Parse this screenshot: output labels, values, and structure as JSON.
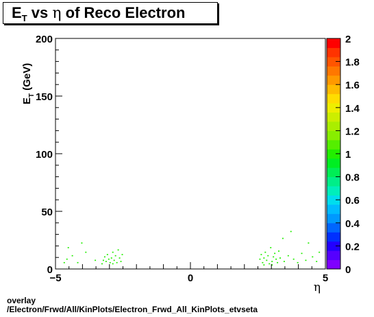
{
  "title": {
    "prefix": "E",
    "subscript": "T",
    "middle": " vs  ",
    "symbol": "η",
    "suffix": " of Reco Electron"
  },
  "footer": {
    "line1": "overlay",
    "line2": "/Electron/Frwd/All/KinPlots/Electron_Frwd_All_KinPlots_etvseta"
  },
  "palette": {
    "zmin": 0,
    "zmax": 2,
    "ticks": [
      "0",
      "0.2",
      "0.4",
      "0.6",
      "0.8",
      "1",
      "1.2",
      "1.4",
      "1.6",
      "1.8",
      "2"
    ],
    "colors": [
      "#7f00ff",
      "#5500ff",
      "#2200ff",
      "#0030ff",
      "#0066ff",
      "#0099ff",
      "#00bbff",
      "#00ddee",
      "#00eebb",
      "#00ee88",
      "#00ee55",
      "#00ee22",
      "#22ee00",
      "#55ee00",
      "#88ee00",
      "#aaee00",
      "#ccee00",
      "#eeee00",
      "#ffdd00",
      "#ffbb00",
      "#ff9900",
      "#ff7700",
      "#ff5500",
      "#ff3300",
      "#ff0000"
    ]
  },
  "chart_data": {
    "type": "heatmap",
    "xlabel": "η",
    "ylabel_main": "E",
    "ylabel_sub": "T",
    "ylabel_unit": " (GeV)",
    "xlim": [
      -5,
      5
    ],
    "ylim": [
      0,
      200
    ],
    "xticks": [
      {
        "v": -5,
        "label": "−5"
      },
      {
        "v": 0,
        "label": "0"
      },
      {
        "v": 5,
        "label": "5"
      }
    ],
    "yticks": [
      {
        "v": 0,
        "label": "0"
      },
      {
        "v": 50,
        "label": "50"
      },
      {
        "v": 100,
        "label": "100"
      },
      {
        "v": 150,
        "label": "150"
      },
      {
        "v": 200,
        "label": "200"
      }
    ],
    "z_range": [
      0,
      2
    ],
    "cell_size": {
      "dx": 0.05,
      "dy": 1
    },
    "cells": [
      {
        "x": -4.7,
        "y": 5,
        "z": 1
      },
      {
        "x": -4.6,
        "y": 8,
        "z": 1
      },
      {
        "x": -4.55,
        "y": 18,
        "z": 1
      },
      {
        "x": -4.4,
        "y": 11,
        "z": 1
      },
      {
        "x": -4.2,
        "y": 5,
        "z": 1
      },
      {
        "x": -4.05,
        "y": 22,
        "z": 1
      },
      {
        "x": -3.9,
        "y": 14,
        "z": 1
      },
      {
        "x": -3.55,
        "y": 7,
        "z": 1
      },
      {
        "x": -3.3,
        "y": 4,
        "z": 1
      },
      {
        "x": -3.2,
        "y": 10,
        "z": 1
      },
      {
        "x": -3.15,
        "y": 6,
        "z": 1
      },
      {
        "x": -3.1,
        "y": 12,
        "z": 1
      },
      {
        "x": -3.05,
        "y": 8,
        "z": 1
      },
      {
        "x": -3.0,
        "y": 5,
        "z": 1
      },
      {
        "x": -2.95,
        "y": 9,
        "z": 1
      },
      {
        "x": -2.9,
        "y": 14,
        "z": 1
      },
      {
        "x": -2.85,
        "y": 7,
        "z": 1
      },
      {
        "x": -2.8,
        "y": 11,
        "z": 1
      },
      {
        "x": -2.75,
        "y": 5,
        "z": 1
      },
      {
        "x": -2.7,
        "y": 16,
        "z": 1
      },
      {
        "x": -2.65,
        "y": 9,
        "z": 1
      },
      {
        "x": -2.6,
        "y": 6,
        "z": 1
      },
      {
        "x": -2.55,
        "y": 12,
        "z": 1
      },
      {
        "x": -3.25,
        "y": 7,
        "z": 1
      },
      {
        "x": -2.9,
        "y": 4,
        "z": 1
      },
      {
        "x": 2.55,
        "y": 8,
        "z": 1
      },
      {
        "x": 2.6,
        "y": 12,
        "z": 1
      },
      {
        "x": 2.65,
        "y": 5,
        "z": 1
      },
      {
        "x": 2.7,
        "y": 9,
        "z": 1
      },
      {
        "x": 2.75,
        "y": 14,
        "z": 1
      },
      {
        "x": 2.8,
        "y": 7,
        "z": 1
      },
      {
        "x": 2.85,
        "y": 11,
        "z": 1
      },
      {
        "x": 2.9,
        "y": 4,
        "z": 1
      },
      {
        "x": 2.95,
        "y": 18,
        "z": 1
      },
      {
        "x": 3.0,
        "y": 6,
        "z": 1
      },
      {
        "x": 3.05,
        "y": 10,
        "z": 1
      },
      {
        "x": 3.1,
        "y": 13,
        "z": 1
      },
      {
        "x": 3.15,
        "y": 8,
        "z": 1
      },
      {
        "x": 3.2,
        "y": 5,
        "z": 1
      },
      {
        "x": 3.25,
        "y": 15,
        "z": 1
      },
      {
        "x": 3.3,
        "y": 9,
        "z": 1
      },
      {
        "x": 3.4,
        "y": 26,
        "z": 1
      },
      {
        "x": 3.45,
        "y": 6,
        "z": 1
      },
      {
        "x": 3.6,
        "y": 11,
        "z": 1
      },
      {
        "x": 3.7,
        "y": 32,
        "z": 1
      },
      {
        "x": 3.8,
        "y": 8,
        "z": 1
      },
      {
        "x": 3.95,
        "y": 5,
        "z": 1
      },
      {
        "x": 4.1,
        "y": 13,
        "z": 1
      },
      {
        "x": 4.25,
        "y": 7,
        "z": 1
      },
      {
        "x": 4.35,
        "y": 22,
        "z": 1
      },
      {
        "x": 4.5,
        "y": 10,
        "z": 1
      },
      {
        "x": 4.65,
        "y": 6,
        "z": 1
      },
      {
        "x": 4.75,
        "y": 14,
        "z": 1
      },
      {
        "x": 3.0,
        "y": 3,
        "z": 1
      },
      {
        "x": 2.7,
        "y": 3,
        "z": 1
      }
    ]
  }
}
